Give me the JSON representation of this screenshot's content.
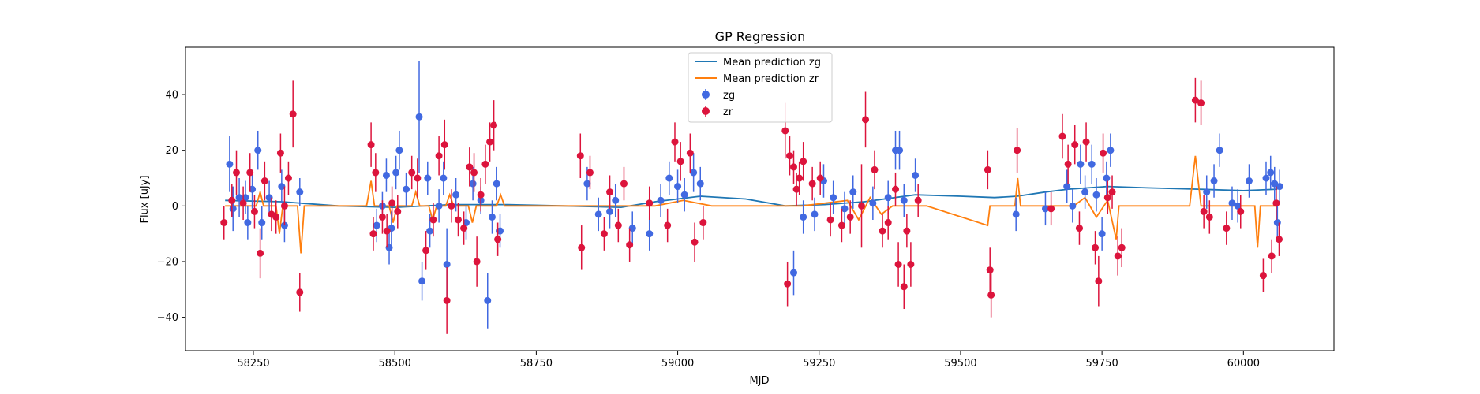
{
  "chart_data": {
    "type": "scatter",
    "title": "GP Regression",
    "xlabel": "MJD",
    "ylabel": "Flux [uJy]",
    "xlim": [
      58130,
      60160
    ],
    "ylim": [
      -52,
      57
    ],
    "xticks": [
      58250,
      58500,
      58750,
      59000,
      59250,
      59500,
      59750,
      60000
    ],
    "yticks": [
      -40,
      -20,
      0,
      20,
      40
    ],
    "grid": false,
    "legend_position": "top-center",
    "legend": [
      "Mean prediction zg",
      "Mean prediction zr",
      "zg",
      "zr"
    ],
    "colors": {
      "zg_line": "#1f77b4",
      "zr_line": "#ff7f0e",
      "zg_points": "#4169e1",
      "zr_points": "#dc143c"
    },
    "series": [
      {
        "name": "Mean prediction zg",
        "kind": "line",
        "x": [
          58200,
          58300,
          58400,
          58500,
          58600,
          58700,
          58800,
          58900,
          58960,
          59040,
          59120,
          59190,
          59260,
          59330,
          59420,
          59500,
          59560,
          59600,
          59650,
          59690,
          59760,
          59830,
          59920,
          60000,
          60060
        ],
        "y": [
          2,
          1.5,
          0,
          -0.5,
          0.5,
          0.5,
          0,
          -0.5,
          1.5,
          3.5,
          2.5,
          0,
          0.5,
          1.5,
          4,
          3.5,
          3,
          3.5,
          5,
          6,
          7,
          6.5,
          6,
          5.5,
          6
        ]
      },
      {
        "name": "Mean prediction zr",
        "kind": "line",
        "x": [
          58200,
          58255,
          58262,
          58268,
          58290,
          58296,
          58302,
          58328,
          58334,
          58340,
          58450,
          58458,
          58464,
          58470,
          58490,
          58497,
          58504,
          58530,
          58537,
          58544,
          58560,
          58567,
          58574,
          58590,
          58597,
          58604,
          58630,
          58637,
          58644,
          58680,
          58687,
          58694,
          58820,
          58900,
          58960,
          59010,
          59060,
          59180,
          59200,
          59220,
          59300,
          59320,
          59340,
          59360,
          59380,
          59440,
          59548,
          59552,
          59556,
          59596,
          59601,
          59606,
          59700,
          59720,
          59740,
          59760,
          59775,
          59780,
          59785,
          59905,
          59915,
          59925,
          60020,
          60025,
          60030,
          60060
        ],
        "y": [
          0,
          0,
          5,
          0,
          0,
          -10,
          0,
          0,
          -17,
          0,
          0,
          9,
          0,
          0,
          0,
          -6,
          0,
          0,
          5,
          0,
          0,
          -5,
          0,
          0,
          4,
          0,
          0,
          -6,
          0,
          0,
          4,
          0,
          0,
          0,
          0,
          2,
          0,
          0,
          0,
          0,
          2,
          -5,
          3,
          -3,
          0,
          0,
          -7,
          0,
          0,
          0,
          10,
          0,
          0,
          3,
          -4,
          2,
          -12,
          0,
          0,
          0,
          18,
          0,
          0,
          -15,
          0,
          0
        ]
      },
      {
        "name": "zg",
        "kind": "errorbar",
        "points": [
          [
            58208,
            15,
            10
          ],
          [
            58214,
            -1,
            8
          ],
          [
            58225,
            3,
            7
          ],
          [
            58236,
            3,
            6
          ],
          [
            58240,
            -6,
            6
          ],
          [
            58248,
            6,
            7
          ],
          [
            58258,
            20,
            7
          ],
          [
            58265,
            -6,
            6
          ],
          [
            58278,
            3,
            6
          ],
          [
            58300,
            7,
            6
          ],
          [
            58305,
            -7,
            6
          ],
          [
            58332,
            5,
            5
          ],
          [
            58468,
            -7,
            6
          ],
          [
            58478,
            0,
            5
          ],
          [
            58485,
            11,
            6
          ],
          [
            58490,
            -15,
            6
          ],
          [
            58494,
            -8,
            6
          ],
          [
            58502,
            12,
            6
          ],
          [
            58508,
            20,
            7
          ],
          [
            58520,
            6,
            6
          ],
          [
            58543,
            32,
            20
          ],
          [
            58548,
            -27,
            7
          ],
          [
            58558,
            10,
            6
          ],
          [
            58562,
            -9,
            6
          ],
          [
            58578,
            0,
            6
          ],
          [
            58586,
            10,
            6
          ],
          [
            58592,
            -21,
            13
          ],
          [
            58608,
            4,
            6
          ],
          [
            58626,
            -6,
            6
          ],
          [
            58638,
            8,
            6
          ],
          [
            58652,
            2,
            5
          ],
          [
            58664,
            -34,
            10
          ],
          [
            58672,
            -4,
            6
          ],
          [
            58680,
            8,
            6
          ],
          [
            58686,
            -9,
            6
          ],
          [
            58840,
            8,
            6
          ],
          [
            58860,
            -3,
            6
          ],
          [
            58880,
            -2,
            6
          ],
          [
            58890,
            2,
            6
          ],
          [
            58920,
            -8,
            6
          ],
          [
            58950,
            -10,
            6
          ],
          [
            58970,
            2,
            6
          ],
          [
            58985,
            10,
            6
          ],
          [
            59000,
            7,
            6
          ],
          [
            59012,
            4,
            6
          ],
          [
            59028,
            12,
            7
          ],
          [
            59040,
            8,
            6
          ],
          [
            59205,
            -24,
            8
          ],
          [
            59222,
            -4,
            6
          ],
          [
            59242,
            -3,
            6
          ],
          [
            59258,
            9,
            6
          ],
          [
            59275,
            3,
            6
          ],
          [
            59295,
            -1,
            6
          ],
          [
            59310,
            5,
            6
          ],
          [
            59345,
            1,
            6
          ],
          [
            59372,
            3,
            6
          ],
          [
            59385,
            20,
            7
          ],
          [
            59392,
            20,
            7
          ],
          [
            59400,
            2,
            6
          ],
          [
            59420,
            11,
            6
          ],
          [
            59598,
            -3,
            6
          ],
          [
            59650,
            -1,
            6
          ],
          [
            59688,
            7,
            6
          ],
          [
            59698,
            0,
            6
          ],
          [
            59712,
            15,
            7
          ],
          [
            59720,
            5,
            6
          ],
          [
            59732,
            15,
            7
          ],
          [
            59740,
            4,
            6
          ],
          [
            59750,
            -10,
            6
          ],
          [
            59758,
            10,
            6
          ],
          [
            59765,
            20,
            6
          ],
          [
            59935,
            5,
            6
          ],
          [
            59948,
            9,
            6
          ],
          [
            59958,
            20,
            6
          ],
          [
            59980,
            1,
            6
          ],
          [
            59990,
            0,
            6
          ],
          [
            60010,
            9,
            6
          ],
          [
            60040,
            10,
            6
          ],
          [
            60048,
            12,
            6
          ],
          [
            60055,
            8,
            6
          ],
          [
            60060,
            -6,
            6
          ],
          [
            60064,
            7,
            6
          ]
        ]
      },
      {
        "name": "zr",
        "kind": "errorbar",
        "points": [
          [
            58198,
            -6,
            6
          ],
          [
            58212,
            2,
            6
          ],
          [
            58220,
            12,
            8
          ],
          [
            58232,
            1,
            6
          ],
          [
            58244,
            12,
            7
          ],
          [
            58252,
            -2,
            6
          ],
          [
            58262,
            -17,
            9
          ],
          [
            58270,
            9,
            7
          ],
          [
            58282,
            -3,
            6
          ],
          [
            58290,
            -4,
            6
          ],
          [
            58298,
            19,
            7
          ],
          [
            58305,
            0,
            7
          ],
          [
            58312,
            10,
            6
          ],
          [
            58320,
            33,
            12
          ],
          [
            58332,
            -31,
            7
          ],
          [
            58458,
            22,
            8
          ],
          [
            58462,
            -10,
            6
          ],
          [
            58466,
            12,
            7
          ],
          [
            58478,
            -4,
            6
          ],
          [
            58486,
            -9,
            6
          ],
          [
            58495,
            1,
            6
          ],
          [
            58505,
            -2,
            6
          ],
          [
            58530,
            12,
            6
          ],
          [
            58540,
            10,
            7
          ],
          [
            58555,
            -16,
            7
          ],
          [
            58568,
            -5,
            6
          ],
          [
            58578,
            18,
            7
          ],
          [
            58588,
            22,
            9
          ],
          [
            58592,
            -34,
            12
          ],
          [
            58600,
            0,
            6
          ],
          [
            58612,
            -5,
            6
          ],
          [
            58622,
            -8,
            6
          ],
          [
            58632,
            14,
            7
          ],
          [
            58640,
            12,
            7
          ],
          [
            58645,
            -20,
            9
          ],
          [
            58652,
            4,
            6
          ],
          [
            58660,
            15,
            7
          ],
          [
            58668,
            23,
            7
          ],
          [
            58675,
            29,
            9
          ],
          [
            58682,
            -12,
            6
          ],
          [
            58828,
            18,
            8
          ],
          [
            58830,
            -15,
            8
          ],
          [
            58845,
            12,
            6
          ],
          [
            58870,
            -10,
            6
          ],
          [
            58880,
            5,
            6
          ],
          [
            58895,
            -7,
            6
          ],
          [
            58905,
            8,
            6
          ],
          [
            58915,
            -14,
            6
          ],
          [
            58950,
            1,
            6
          ],
          [
            58982,
            -7,
            6
          ],
          [
            58995,
            23,
            7
          ],
          [
            59005,
            16,
            7
          ],
          [
            59022,
            19,
            7
          ],
          [
            59030,
            -13,
            7
          ],
          [
            59045,
            -6,
            6
          ],
          [
            59190,
            27,
            10
          ],
          [
            59194,
            -28,
            8
          ],
          [
            59198,
            18,
            7
          ],
          [
            59205,
            14,
            6
          ],
          [
            59210,
            6,
            6
          ],
          [
            59215,
            10,
            6
          ],
          [
            59222,
            16,
            7
          ],
          [
            59238,
            8,
            6
          ],
          [
            59252,
            10,
            6
          ],
          [
            59270,
            -5,
            6
          ],
          [
            59290,
            -7,
            6
          ],
          [
            59305,
            -4,
            6
          ],
          [
            59325,
            0,
            15
          ],
          [
            59332,
            31,
            10
          ],
          [
            59348,
            13,
            7
          ],
          [
            59362,
            -9,
            6
          ],
          [
            59372,
            -6,
            6
          ],
          [
            59385,
            6,
            6
          ],
          [
            59390,
            -21,
            8
          ],
          [
            59400,
            -29,
            8
          ],
          [
            59405,
            -9,
            6
          ],
          [
            59412,
            -21,
            8
          ],
          [
            59425,
            2,
            6
          ],
          [
            59548,
            13,
            7
          ],
          [
            59552,
            -23,
            8
          ],
          [
            59554,
            -32,
            8
          ],
          [
            59600,
            20,
            8
          ],
          [
            59660,
            -1,
            6
          ],
          [
            59680,
            25,
            8
          ],
          [
            59690,
            15,
            7
          ],
          [
            59702,
            22,
            7
          ],
          [
            59710,
            -8,
            6
          ],
          [
            59722,
            23,
            7
          ],
          [
            59738,
            -15,
            6
          ],
          [
            59744,
            -27,
            9
          ],
          [
            59752,
            19,
            7
          ],
          [
            59760,
            3,
            6
          ],
          [
            59768,
            5,
            6
          ],
          [
            59778,
            -18,
            7
          ],
          [
            59785,
            -15,
            7
          ],
          [
            59915,
            38,
            8
          ],
          [
            59925,
            37,
            8
          ],
          [
            59930,
            -2,
            6
          ],
          [
            59940,
            -4,
            6
          ],
          [
            59970,
            -8,
            6
          ],
          [
            59995,
            -2,
            6
          ],
          [
            60035,
            -25,
            6
          ],
          [
            60050,
            -18,
            6
          ],
          [
            60058,
            1,
            6
          ],
          [
            60063,
            -12,
            6
          ]
        ]
      }
    ]
  }
}
